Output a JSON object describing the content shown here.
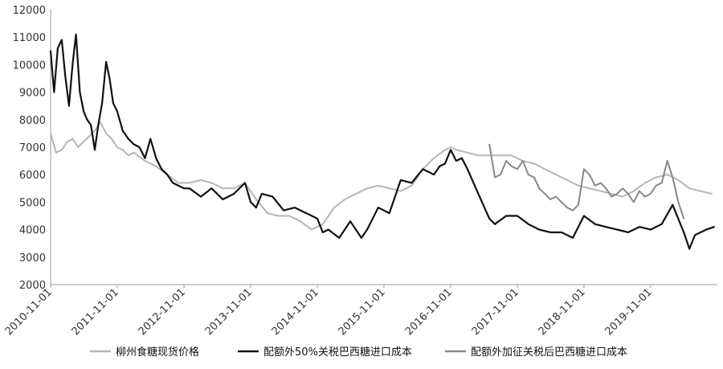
{
  "chart_data": {
    "type": "line",
    "title": "",
    "xlabel": "",
    "ylabel": "",
    "ylim": [
      2000,
      12000
    ],
    "y_ticks": [
      "12000",
      "11000",
      "10000",
      "9000",
      "8000",
      "7000",
      "6000",
      "5000",
      "4000",
      "3000",
      "2000"
    ],
    "x_range": [
      "2010-11-01",
      "2020-11-01"
    ],
    "x_ticks": [
      "2010-11-01",
      "2011-11-01",
      "2012-11-01",
      "2013-11-01",
      "2014-11-01",
      "2015-11-01",
      "2016-11-01",
      "2017-11-01",
      "2018-11-01",
      "2019-11-01"
    ],
    "grid": false,
    "legend_position": "bottom",
    "series": [
      {
        "name": "柳州食糖现货价格",
        "color": "#b5b5b5",
        "x": [
          "2010-11-01",
          "2010-12-01",
          "2011-01-01",
          "2011-02-01",
          "2011-03-01",
          "2011-04-01",
          "2011-05-01",
          "2011-06-01",
          "2011-07-01",
          "2011-08-01",
          "2011-09-01",
          "2011-10-01",
          "2011-11-01",
          "2011-12-01",
          "2012-01-01",
          "2012-02-01",
          "2012-04-01",
          "2012-06-01",
          "2012-08-01",
          "2012-10-01",
          "2012-12-01",
          "2013-02-01",
          "2013-04-01",
          "2013-06-01",
          "2013-08-01",
          "2013-10-01",
          "2013-12-01",
          "2014-02-01",
          "2014-04-01",
          "2014-06-01",
          "2014-08-01",
          "2014-10-01",
          "2014-12-01",
          "2015-02-01",
          "2015-04-01",
          "2015-06-01",
          "2015-08-01",
          "2015-10-01",
          "2015-12-01",
          "2016-02-01",
          "2016-04-01",
          "2016-06-01",
          "2016-08-01",
          "2016-10-01",
          "2016-11-01",
          "2016-12-01",
          "2017-02-01",
          "2017-04-01",
          "2017-06-01",
          "2017-08-01",
          "2017-10-01",
          "2017-12-01",
          "2018-02-01",
          "2018-04-01",
          "2018-06-01",
          "2018-08-01",
          "2018-10-01",
          "2018-12-01",
          "2019-02-01",
          "2019-04-01",
          "2019-06-01",
          "2019-08-01",
          "2019-10-01",
          "2019-12-01",
          "2020-02-01",
          "2020-04-01",
          "2020-06-01",
          "2020-08-01",
          "2020-10-01"
        ],
        "values": [
          7500,
          6800,
          6900,
          7200,
          7300,
          7000,
          7200,
          7400,
          7600,
          7900,
          7500,
          7300,
          7000,
          6900,
          6700,
          6800,
          6500,
          6300,
          6000,
          5700,
          5700,
          5800,
          5700,
          5500,
          5500,
          5700,
          5100,
          4600,
          4500,
          4500,
          4300,
          4000,
          4200,
          4800,
          5100,
          5300,
          5500,
          5600,
          5500,
          5400,
          5600,
          6200,
          6600,
          6900,
          7000,
          6900,
          6800,
          6700,
          6700,
          6700,
          6700,
          6500,
          6400,
          6200,
          6000,
          5800,
          5600,
          5500,
          5400,
          5300,
          5200,
          5400,
          5700,
          5900,
          6000,
          5800,
          5500,
          5400,
          5300
        ]
      },
      {
        "name": "配额外50%关税巴西糖进口成本",
        "color": "#111111",
        "x": [
          "2010-11-01",
          "2010-11-20",
          "2010-12-10",
          "2011-01-01",
          "2011-01-20",
          "2011-02-10",
          "2011-03-01",
          "2011-03-20",
          "2011-04-10",
          "2011-05-01",
          "2011-05-20",
          "2011-06-10",
          "2011-07-01",
          "2011-07-20",
          "2011-08-10",
          "2011-09-01",
          "2011-09-20",
          "2011-10-10",
          "2011-11-01",
          "2011-12-01",
          "2012-01-01",
          "2012-02-01",
          "2012-03-01",
          "2012-04-01",
          "2012-05-01",
          "2012-06-01",
          "2012-07-01",
          "2012-08-01",
          "2012-09-01",
          "2012-10-01",
          "2012-11-01",
          "2012-12-01",
          "2013-02-01",
          "2013-04-01",
          "2013-06-01",
          "2013-08-01",
          "2013-10-01",
          "2013-11-01",
          "2013-12-01",
          "2014-01-01",
          "2014-03-01",
          "2014-05-01",
          "2014-07-01",
          "2014-09-01",
          "2014-11-01",
          "2014-12-01",
          "2015-01-01",
          "2015-03-01",
          "2015-05-01",
          "2015-07-01",
          "2015-08-01",
          "2015-10-01",
          "2015-12-01",
          "2016-02-01",
          "2016-04-01",
          "2016-06-01",
          "2016-08-01",
          "2016-09-01",
          "2016-10-01",
          "2016-11-01",
          "2016-12-01",
          "2017-01-01",
          "2017-02-01",
          "2017-04-01",
          "2017-06-01",
          "2017-07-01",
          "2017-09-01",
          "2017-11-01",
          "2018-01-01",
          "2018-03-01",
          "2018-05-01",
          "2018-07-01",
          "2018-09-01",
          "2018-11-01",
          "2019-01-01",
          "2019-03-01",
          "2019-05-01",
          "2019-07-01",
          "2019-09-01",
          "2019-11-01",
          "2020-01-01",
          "2020-03-01",
          "2020-05-01",
          "2020-06-01",
          "2020-07-01",
          "2020-09-01",
          "2020-10-15"
        ],
        "values": [
          10500,
          9000,
          10600,
          10900,
          9600,
          8500,
          10000,
          11100,
          9000,
          8300,
          8000,
          7800,
          6900,
          7800,
          8600,
          10100,
          9500,
          8600,
          8300,
          7600,
          7300,
          7100,
          7000,
          6600,
          7300,
          6600,
          6200,
          6000,
          5700,
          5600,
          5500,
          5500,
          5200,
          5500,
          5100,
          5300,
          5700,
          5000,
          4800,
          5300,
          5200,
          4700,
          4800,
          4600,
          4400,
          3900,
          4000,
          3700,
          4300,
          3700,
          4000,
          4800,
          4600,
          5800,
          5700,
          6200,
          6000,
          6300,
          6400,
          6900,
          6500,
          6600,
          6200,
          5300,
          4400,
          4200,
          4500,
          4500,
          4200,
          4000,
          3900,
          3900,
          3700,
          4500,
          4200,
          4100,
          4000,
          3900,
          4100,
          4000,
          4200,
          4900,
          3900,
          3300,
          3800,
          4000,
          4100
        ]
      },
      {
        "name": "配额外加征关税后巴西糖进口成本",
        "color": "#888888",
        "x": [
          "2017-06-01",
          "2017-07-01",
          "2017-08-01",
          "2017-09-01",
          "2017-10-01",
          "2017-11-01",
          "2017-12-01",
          "2018-01-01",
          "2018-02-01",
          "2018-03-01",
          "2018-04-01",
          "2018-05-01",
          "2018-06-01",
          "2018-07-01",
          "2018-08-01",
          "2018-09-01",
          "2018-10-01",
          "2018-11-01",
          "2018-12-01",
          "2019-01-01",
          "2019-02-01",
          "2019-03-01",
          "2019-04-01",
          "2019-05-01",
          "2019-06-01",
          "2019-07-01",
          "2019-08-01",
          "2019-09-01",
          "2019-10-01",
          "2019-11-01",
          "2019-12-01",
          "2020-01-01",
          "2020-02-01",
          "2020-03-01",
          "2020-04-01",
          "2020-05-01"
        ],
        "values": [
          7100,
          5900,
          6000,
          6500,
          6300,
          6200,
          6500,
          6000,
          5900,
          5500,
          5300,
          5100,
          5200,
          5000,
          4800,
          4700,
          4900,
          6200,
          6000,
          5600,
          5700,
          5500,
          5200,
          5300,
          5500,
          5300,
          5000,
          5400,
          5200,
          5300,
          5600,
          5700,
          6500,
          5900,
          5000,
          4400
        ]
      }
    ]
  }
}
